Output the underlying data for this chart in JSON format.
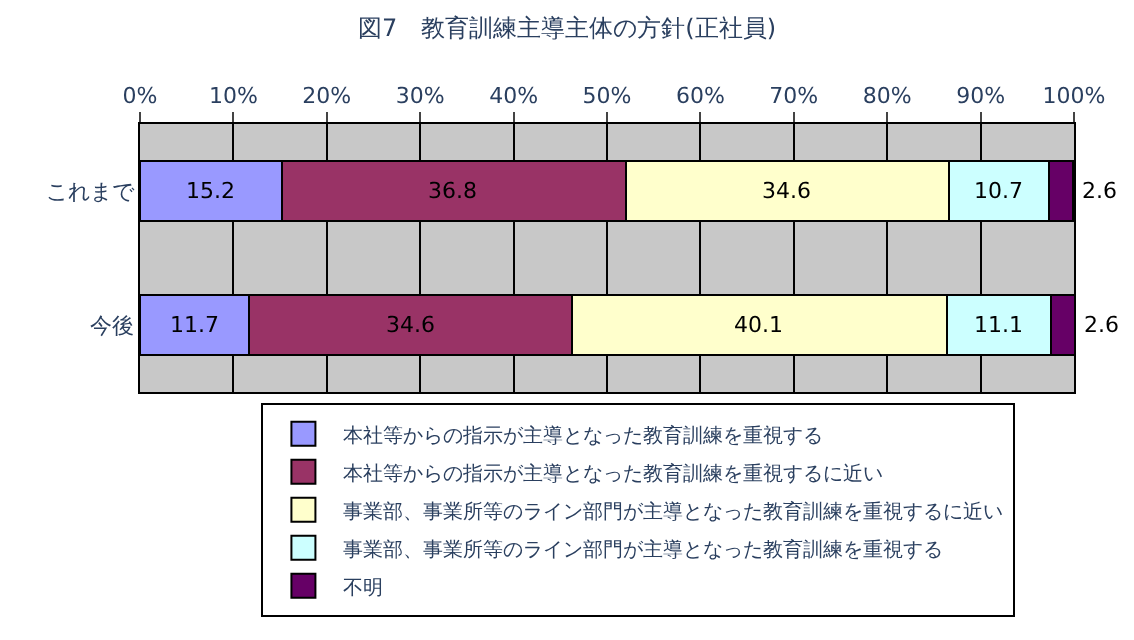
{
  "chart_data": {
    "type": "bar",
    "orientation": "horizontal",
    "stacked": true,
    "title": "図7　教育訓練主導主体の方針(正社員)",
    "categories": [
      "これまで",
      "今後"
    ],
    "series": [
      {
        "name": "本社等からの指示が主導となった教育訓練を重視する",
        "color": "#9999ff",
        "values": [
          15.2,
          11.7
        ]
      },
      {
        "name": "本社等からの指示が主導となった教育訓練を重視するに近い",
        "color": "#993366",
        "values": [
          36.8,
          34.6
        ]
      },
      {
        "name": "事業部、事業所等のライン部門が主導となった教育訓練を重視するに近い",
        "color": "#ffffcc",
        "values": [
          34.6,
          40.1
        ]
      },
      {
        "name": "事業部、事業所等のライン部門が主導となった教育訓練を重視する",
        "color": "#ccffff",
        "values": [
          10.7,
          11.1
        ]
      },
      {
        "name": "不明",
        "color": "#660066",
        "values": [
          2.6,
          2.6
        ]
      }
    ],
    "xlim": [
      0,
      100
    ],
    "xticks": [
      {
        "value": 0,
        "label": "0%"
      },
      {
        "value": 10,
        "label": "10%"
      },
      {
        "value": 20,
        "label": "20%"
      },
      {
        "value": 30,
        "label": "30%"
      },
      {
        "value": 40,
        "label": "40%"
      },
      {
        "value": 50,
        "label": "50%"
      },
      {
        "value": 60,
        "label": "60%"
      },
      {
        "value": 70,
        "label": "70%"
      },
      {
        "value": 80,
        "label": "80%"
      },
      {
        "value": 90,
        "label": "90%"
      },
      {
        "value": 100,
        "label": "100%"
      }
    ],
    "grid": "x",
    "legend": "bottom",
    "data_labels": true
  }
}
